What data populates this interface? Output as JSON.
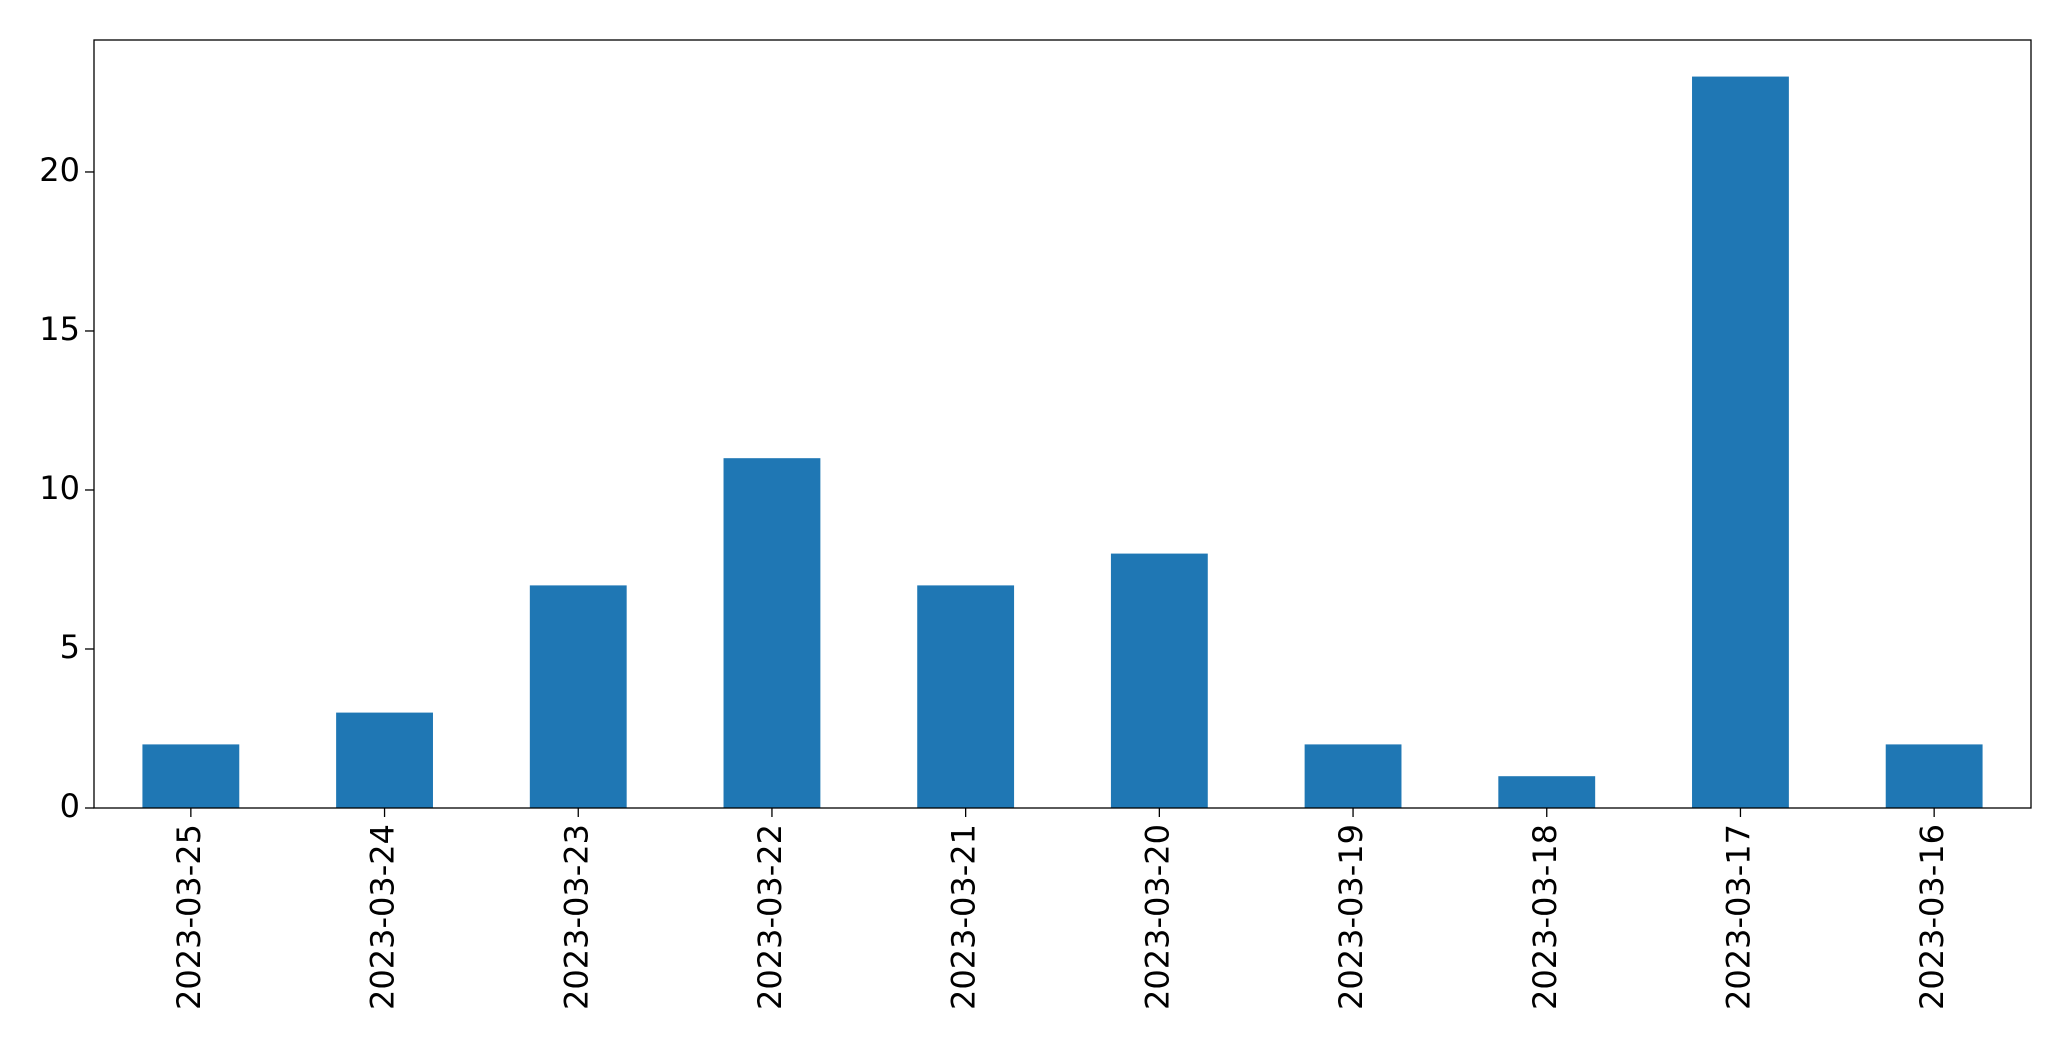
{
  "chart_data": {
    "type": "bar",
    "categories": [
      "2023-03-25",
      "2023-03-24",
      "2023-03-23",
      "2023-03-22",
      "2023-03-21",
      "2023-03-20",
      "2023-03-19",
      "2023-03-18",
      "2023-03-17",
      "2023-03-16"
    ],
    "values": [
      2,
      3,
      7,
      11,
      7,
      8,
      2,
      1,
      23,
      2
    ],
    "color": "#1f77b4",
    "ylim": [
      0,
      24.15
    ],
    "yticks": [
      0,
      5,
      10,
      15,
      20
    ],
    "grid": false
  }
}
